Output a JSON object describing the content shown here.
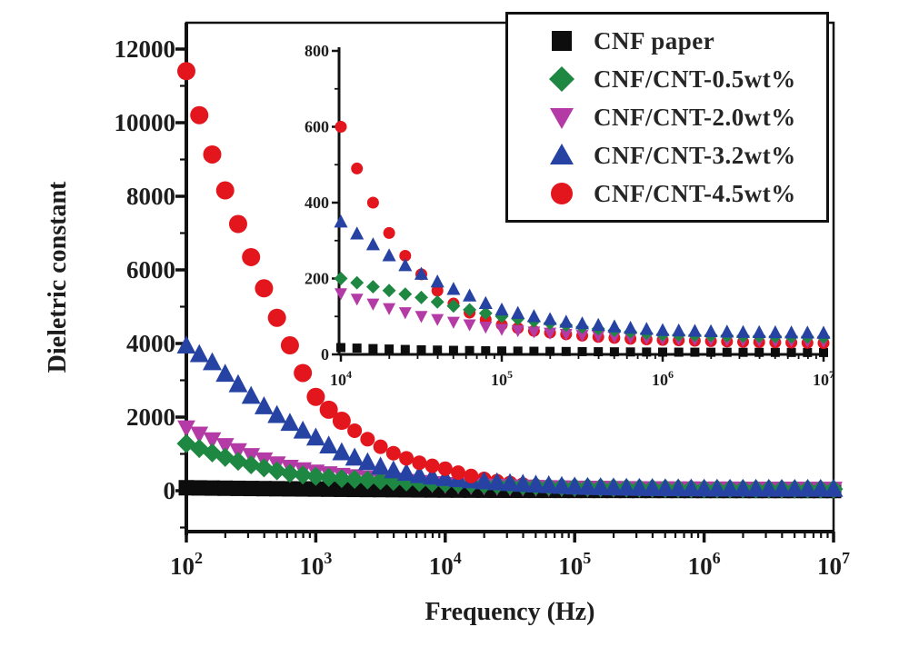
{
  "figure": {
    "background": "#ffffff",
    "text_color": "#1d1d1d",
    "frame_color": "#111111"
  },
  "chart_data": {
    "type": "scatter",
    "title": "",
    "xlabel": "Frequency (Hz)",
    "ylabel": "Dieletric constant",
    "x_scale": "log",
    "grid": "off",
    "legend_position": "top-right",
    "points_per_decade": 10,
    "main_axes": {
      "x_tick_exponents": [
        2,
        3,
        4,
        5,
        6,
        7
      ],
      "x_range_exponents": [
        2,
        7
      ],
      "y_ticks": [
        0,
        2000,
        4000,
        6000,
        8000,
        10000,
        12000
      ],
      "y_minor_step": 1000,
      "y_range": [
        -1100,
        12700
      ]
    },
    "inset_axes": {
      "x_tick_exponents": [
        4,
        5,
        6,
        7
      ],
      "x_range_exponents": [
        4,
        7
      ],
      "y_ticks": [
        0,
        200,
        400,
        600,
        800
      ],
      "y_minor_step": 100,
      "y_range": [
        -25,
        810
      ]
    },
    "series": [
      {
        "name": "CNF paper",
        "marker": "square",
        "color": "#0d0d0d",
        "anchors": [
          [
            100,
            80
          ],
          [
            316,
            60
          ],
          [
            1000,
            45
          ],
          [
            3162,
            30
          ],
          [
            10000,
            18
          ],
          [
            31623,
            12
          ],
          [
            100000,
            9
          ],
          [
            1000000,
            6
          ],
          [
            10000000,
            5
          ]
        ]
      },
      {
        "name": "CNF/CNT-0.5wt%",
        "marker": "diamond",
        "color": "#1e8742",
        "anchors": [
          [
            100,
            1280
          ],
          [
            158,
            1030
          ],
          [
            251,
            800
          ],
          [
            398,
            620
          ],
          [
            631,
            470
          ],
          [
            1000,
            390
          ],
          [
            1585,
            330
          ],
          [
            2512,
            290
          ],
          [
            3981,
            255
          ],
          [
            6310,
            225
          ],
          [
            10000,
            200
          ],
          [
            31623,
            150
          ],
          [
            100000,
            100
          ],
          [
            316228,
            72
          ],
          [
            1000000,
            52
          ],
          [
            3162278,
            48
          ],
          [
            10000000,
            45
          ]
        ]
      },
      {
        "name": "CNF/CNT-2.0wt%",
        "marker": "triangle-down",
        "color": "#b43aa6",
        "anchors": [
          [
            100,
            1700
          ],
          [
            158,
            1380
          ],
          [
            251,
            1080
          ],
          [
            398,
            830
          ],
          [
            631,
            630
          ],
          [
            1000,
            500
          ],
          [
            1585,
            410
          ],
          [
            2512,
            340
          ],
          [
            3981,
            280
          ],
          [
            6310,
            215
          ],
          [
            10000,
            160
          ],
          [
            31623,
            100
          ],
          [
            100000,
            66
          ],
          [
            316228,
            50
          ],
          [
            1000000,
            40
          ],
          [
            10000000,
            34
          ]
        ]
      },
      {
        "name": "CNF/CNT-3.2wt%",
        "marker": "triangle-up",
        "color": "#2643a4",
        "anchors": [
          [
            100,
            3950
          ],
          [
            158,
            3500
          ],
          [
            251,
            2900
          ],
          [
            398,
            2300
          ],
          [
            631,
            1850
          ],
          [
            1000,
            1450
          ],
          [
            1585,
            1050
          ],
          [
            2512,
            780
          ],
          [
            3981,
            560
          ],
          [
            6310,
            430
          ],
          [
            10000,
            350
          ],
          [
            15849,
            290
          ],
          [
            25119,
            235
          ],
          [
            39811,
            192
          ],
          [
            63096,
            155
          ],
          [
            100000,
            118
          ],
          [
            251189,
            86
          ],
          [
            630957,
            70
          ],
          [
            1000000,
            64
          ],
          [
            3162278,
            59
          ],
          [
            10000000,
            57
          ]
        ]
      },
      {
        "name": "CNF/CNT-4.5wt%",
        "marker": "circle",
        "color": "#e3151d",
        "anchors": [
          [
            100,
            11400
          ],
          [
            126,
            10200
          ],
          [
            158,
            9150
          ],
          [
            200,
            8150
          ],
          [
            251,
            7250
          ],
          [
            316,
            6350
          ],
          [
            398,
            5500
          ],
          [
            501,
            4700
          ],
          [
            631,
            3950
          ],
          [
            794,
            3200
          ],
          [
            1000,
            2550
          ],
          [
            1585,
            1900
          ],
          [
            2512,
            1400
          ],
          [
            3981,
            1020
          ],
          [
            6310,
            760
          ],
          [
            10000,
            600
          ],
          [
            12589,
            490
          ],
          [
            15849,
            400
          ],
          [
            19953,
            320
          ],
          [
            25119,
            260
          ],
          [
            31623,
            211
          ],
          [
            39811,
            168
          ],
          [
            50119,
            134
          ],
          [
            63096,
            110
          ],
          [
            79433,
            92
          ],
          [
            100000,
            78
          ],
          [
            158489,
            62
          ],
          [
            251189,
            53
          ],
          [
            398107,
            46
          ],
          [
            630957,
            41
          ],
          [
            1000000,
            38
          ],
          [
            3162278,
            33
          ],
          [
            10000000,
            30
          ]
        ]
      }
    ]
  }
}
